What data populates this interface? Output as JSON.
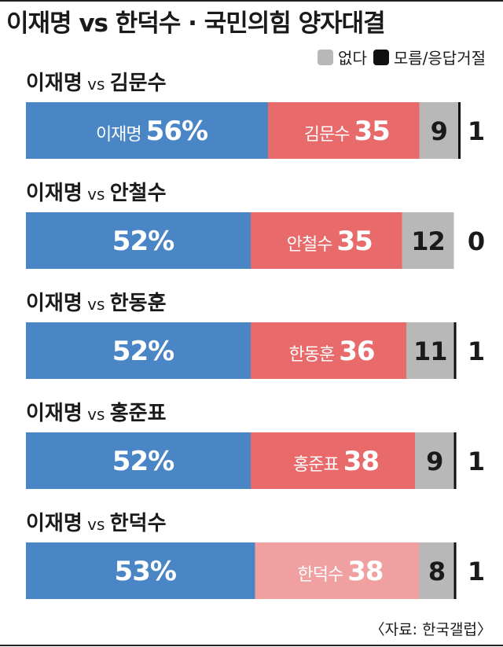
{
  "title": "이재명 vs 한덕수 · 국민의힘 양자대결",
  "legend": {
    "none_label": "없다",
    "dontknow_label": "모름/응답거절"
  },
  "source": "〈자료: 한국갤럽〉",
  "colors": {
    "lee": "#4a86c6",
    "opponent": "#e86a6a",
    "opponent_last": "#f0a0a0",
    "none": "#b8b8b8",
    "dontknow": "#111111"
  },
  "chart_data": {
    "type": "bar",
    "orientation": "horizontal",
    "stacked": true,
    "unit": "%",
    "matchups": [
      {
        "label": "이재명 vs 김문수",
        "name_prefix": "이재명 vs ",
        "name_rest": "김문수",
        "lee_text": "이재명",
        "lee": 56,
        "opponent": "김문수",
        "opponent_value": 35,
        "none": 9,
        "dontknow": 1,
        "opponent_color": "#e86a6a"
      },
      {
        "label": "이재명 vs 안철수",
        "name_prefix": "이재명 vs ",
        "name_rest": "안철수",
        "lee_text": "",
        "lee": 52,
        "opponent": "안철수",
        "opponent_value": 35,
        "none": 12,
        "dontknow": 0,
        "opponent_color": "#e86a6a"
      },
      {
        "label": "이재명 vs 한동훈",
        "name_prefix": "이재명 vs ",
        "name_rest": "한동훈",
        "lee_text": "",
        "lee": 52,
        "opponent": "한동훈",
        "opponent_value": 36,
        "none": 11,
        "dontknow": 1,
        "opponent_color": "#e86a6a"
      },
      {
        "label": "이재명 vs 홍준표",
        "name_prefix": "이재명 vs ",
        "name_rest": "홍준표",
        "lee_text": "",
        "lee": 52,
        "opponent": "홍준표",
        "opponent_value": 38,
        "none": 9,
        "dontknow": 1,
        "opponent_color": "#e86a6a"
      },
      {
        "label": "이재명 vs 한덕수",
        "name_prefix": "이재명 vs ",
        "name_rest": "한덕수",
        "lee_text": "",
        "lee": 53,
        "opponent": "한덕수",
        "opponent_value": 38,
        "none": 8,
        "dontknow": 1,
        "opponent_color": "#f0a0a0"
      }
    ]
  }
}
